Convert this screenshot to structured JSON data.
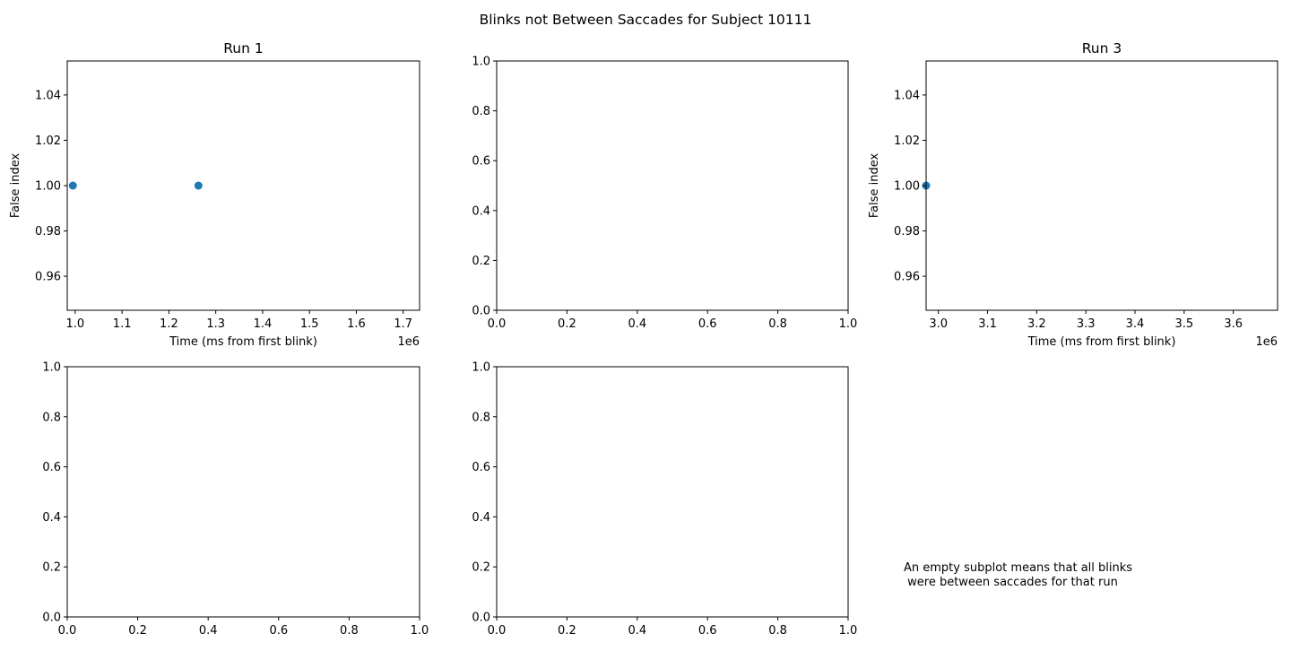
{
  "figure": {
    "title": "Blinks not Between Saccades for Subject 10111",
    "note_lines": [
      "An empty subplot means that all blinks",
      " were between saccades for that run"
    ]
  },
  "chart_data": [
    {
      "type": "scatter",
      "title": "Run 1",
      "xlabel": "Time (ms from first blink)",
      "ylabel": "False index",
      "x_offset_text": "1e6",
      "xlim": [
        0.983,
        1.735
      ],
      "ylim": [
        0.945,
        1.055
      ],
      "xticks": [
        1.0,
        1.1,
        1.2,
        1.3,
        1.4,
        1.5,
        1.6,
        1.7
      ],
      "xtick_labels": [
        "1.0",
        "1.1",
        "1.2",
        "1.3",
        "1.4",
        "1.5",
        "1.6",
        "1.7"
      ],
      "yticks": [
        0.96,
        0.98,
        1.0,
        1.02,
        1.04
      ],
      "ytick_labels": [
        "0.96",
        "0.98",
        "1.00",
        "1.02",
        "1.04"
      ],
      "points": [
        {
          "x": 0.995,
          "y": 1.0
        },
        {
          "x": 1.263,
          "y": 1.0
        }
      ],
      "color": "#1f77b4"
    },
    {
      "type": "scatter",
      "title": "",
      "xlabel": "",
      "ylabel": "",
      "x_offset_text": "",
      "xlim": [
        0.0,
        1.0
      ],
      "ylim": [
        0.0,
        1.0
      ],
      "xticks": [
        0.0,
        0.2,
        0.4,
        0.6,
        0.8,
        1.0
      ],
      "xtick_labels": [
        "0.0",
        "0.2",
        "0.4",
        "0.6",
        "0.8",
        "1.0"
      ],
      "yticks": [
        0.0,
        0.2,
        0.4,
        0.6,
        0.8,
        1.0
      ],
      "ytick_labels": [
        "0.0",
        "0.2",
        "0.4",
        "0.6",
        "0.8",
        "1.0"
      ],
      "points": [],
      "color": "#1f77b4"
    },
    {
      "type": "scatter",
      "title": "Run 3",
      "xlabel": "Time (ms from first blink)",
      "ylabel": "False index",
      "x_offset_text": "1e6",
      "xlim": [
        2.975,
        3.69
      ],
      "ylim": [
        0.945,
        1.055
      ],
      "xticks": [
        3.0,
        3.1,
        3.2,
        3.3,
        3.4,
        3.5,
        3.6
      ],
      "xtick_labels": [
        "3.0",
        "3.1",
        "3.2",
        "3.3",
        "3.4",
        "3.5",
        "3.6"
      ],
      "yticks": [
        0.96,
        0.98,
        1.0,
        1.02,
        1.04
      ],
      "ytick_labels": [
        "0.96",
        "0.98",
        "1.00",
        "1.02",
        "1.04"
      ],
      "points": [
        {
          "x": 2.975,
          "y": 1.0
        }
      ],
      "color": "#1f77b4"
    },
    {
      "type": "scatter",
      "title": "",
      "xlabel": "",
      "ylabel": "",
      "x_offset_text": "",
      "xlim": [
        0.0,
        1.0
      ],
      "ylim": [
        0.0,
        1.0
      ],
      "xticks": [
        0.0,
        0.2,
        0.4,
        0.6,
        0.8,
        1.0
      ],
      "xtick_labels": [
        "0.0",
        "0.2",
        "0.4",
        "0.6",
        "0.8",
        "1.0"
      ],
      "yticks": [
        0.0,
        0.2,
        0.4,
        0.6,
        0.8,
        1.0
      ],
      "ytick_labels": [
        "0.0",
        "0.2",
        "0.4",
        "0.6",
        "0.8",
        "1.0"
      ],
      "points": [],
      "color": "#1f77b4"
    },
    {
      "type": "scatter",
      "title": "",
      "xlabel": "",
      "ylabel": "",
      "x_offset_text": "",
      "xlim": [
        0.0,
        1.0
      ],
      "ylim": [
        0.0,
        1.0
      ],
      "xticks": [
        0.0,
        0.2,
        0.4,
        0.6,
        0.8,
        1.0
      ],
      "xtick_labels": [
        "0.0",
        "0.2",
        "0.4",
        "0.6",
        "0.8",
        "1.0"
      ],
      "yticks": [
        0.0,
        0.2,
        0.4,
        0.6,
        0.8,
        1.0
      ],
      "ytick_labels": [
        "0.0",
        "0.2",
        "0.4",
        "0.6",
        "0.8",
        "1.0"
      ],
      "points": [],
      "color": "#1f77b4"
    }
  ]
}
